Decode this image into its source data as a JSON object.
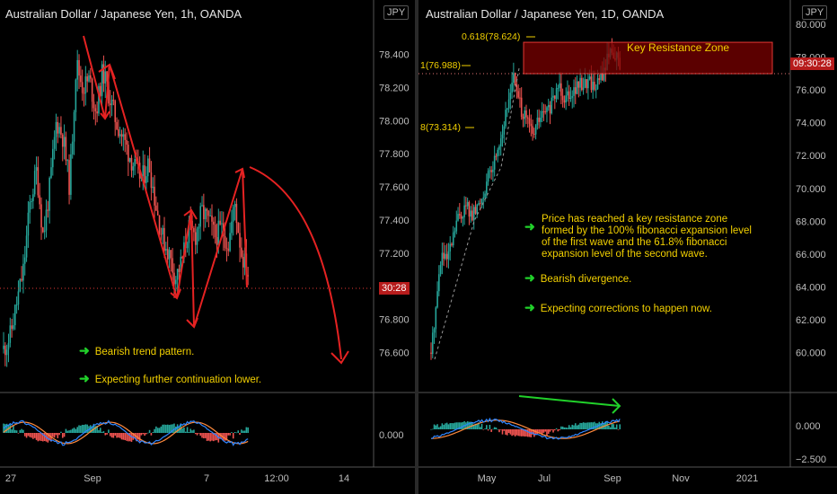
{
  "left": {
    "title": "Australian Dollar / Japanese Yen, 1h, OANDA",
    "currency": "JPY",
    "current_price_tag": "30:28",
    "notes": [
      "Bearish trend pattern.",
      "Expecting further continuation lower."
    ]
  },
  "right": {
    "title": "Australian Dollar / Japanese Yen, 1D, OANDA",
    "currency": "JPY",
    "current_price_tag": "09:30:28",
    "zone_label": "Key Resistance Zone",
    "fib_levels": [
      "0.618(78.624)",
      "1(76.988)",
      "8(73.314)"
    ],
    "notes": [
      "Price has reached a key resistance zone formed by the 100% fibonacci expansion level of the first wave and the 61.8% fibonacci expansion level of the second wave.",
      "Bearish divergence.",
      "Expecting corrections to happen now."
    ]
  },
  "colors": {
    "up": "#26a69a",
    "down": "#ef5350",
    "annotation": "#e52222",
    "text_note": "#f2d000",
    "arrow_note": "#21d12a",
    "divergence": "#21d12a",
    "zone_fill": "#7a0000"
  },
  "chart_data": [
    {
      "type": "candlestick",
      "title": "Australian Dollar / Japanese Yen, 1h, OANDA",
      "x_ticks": [
        "27",
        "Sep",
        "7",
        "12:00",
        "14"
      ],
      "y_ticks": [
        76.6,
        76.8,
        77.0,
        77.2,
        77.4,
        77.6,
        77.8,
        78.0,
        78.2,
        78.4
      ],
      "y_tick_labels": [
        "76.600",
        "76.800",
        "77.000",
        "77.200",
        "77.400",
        "77.600",
        "77.800",
        "78.000",
        "78.200",
        "78.400"
      ],
      "ylim": [
        76.45,
        78.62
      ],
      "close_path": [
        76.62,
        76.7,
        76.9,
        77.1,
        77.5,
        77.7,
        77.3,
        77.6,
        78.0,
        77.9,
        77.6,
        78.35,
        78.2,
        78.25,
        78.05,
        78.3,
        78.15,
        78.0,
        77.9,
        77.8,
        77.7,
        77.65,
        77.75,
        77.5,
        77.3,
        77.2,
        77.05,
        77.15,
        77.35,
        77.3,
        77.45,
        77.4,
        77.3,
        77.35,
        77.25,
        77.5,
        77.2,
        77.08
      ],
      "indicator": {
        "name": "MACD",
        "y_tick_labels": [
          "0.000"
        ]
      }
    },
    {
      "type": "candlestick",
      "title": "Australian Dollar / Japanese Yen, 1D, OANDA",
      "x_ticks": [
        "May",
        "Jul",
        "Sep",
        "Nov",
        "2021"
      ],
      "y_ticks": [
        60,
        62,
        64,
        66,
        68,
        70,
        72,
        74,
        76,
        78,
        80
      ],
      "y_tick_labels": [
        "60.000",
        "62.000",
        "64.000",
        "66.000",
        "68.000",
        "70.000",
        "72.000",
        "74.000",
        "76.000",
        "78.000",
        "80.000"
      ],
      "ylim": [
        58.5,
        80.6
      ],
      "close_path": [
        60.0,
        63.0,
        66.0,
        65.5,
        66.5,
        68.0,
        68.5,
        69.0,
        68.2,
        68.8,
        69.5,
        70.5,
        71.2,
        72.5,
        73.5,
        75.0,
        77.0,
        75.5,
        74.5,
        74.0,
        73.2,
        74.2,
        74.5,
        74.8,
        75.3,
        76.5,
        75.6,
        75.9,
        76.0,
        76.3,
        76.4,
        76.6,
        76.2,
        76.6,
        77.2,
        78.5,
        78.2,
        77.5
      ],
      "resistance_zone": [
        76.988,
        78.9
      ],
      "current_price": 76.988,
      "indicator": {
        "name": "MACD",
        "y_tick_labels": [
          "0.000",
          "−2.500"
        ]
      }
    }
  ]
}
